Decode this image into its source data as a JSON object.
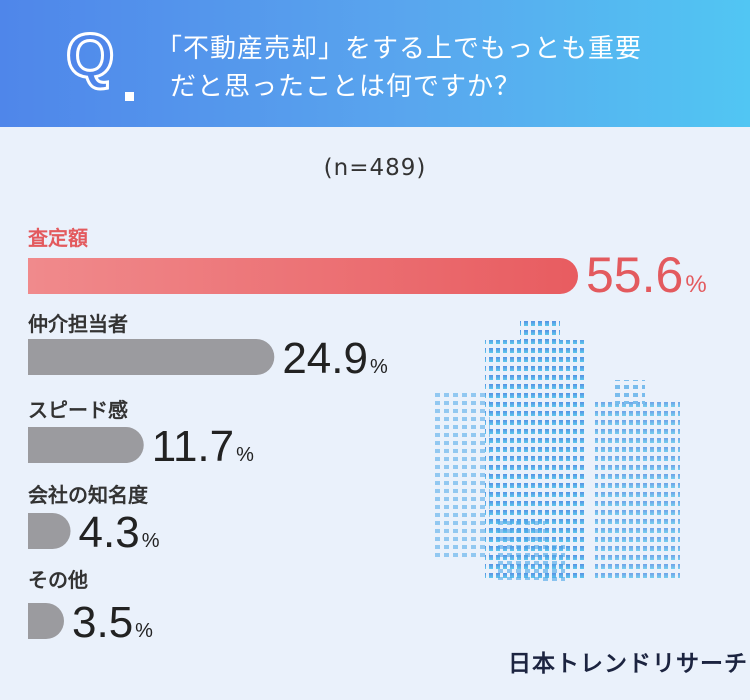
{
  "header": {
    "q_mark": "Q",
    "question_line1": "「不動産売却」をする上でもっとも重要",
    "question_line2": "だと思ったことは何ですか？"
  },
  "sample_size": "(n=489)",
  "brand": "日本トレンドリサーチ",
  "colors": {
    "top_bar_start": "#f08a8c",
    "top_bar_end": "#e85c60",
    "top_text": "#e35a5e",
    "bar_gray": "#9b9b9f",
    "label_dark": "#333333",
    "value_dark": "#222222"
  },
  "chart_data": {
    "type": "bar",
    "orientation": "horizontal",
    "unit": "%",
    "categories": [
      "査定額",
      "仲介担当者",
      "スピード感",
      "会社の知名度",
      "その他"
    ],
    "values": [
      55.6,
      24.9,
      11.7,
      4.3,
      3.5
    ],
    "value_labels": [
      "55.6",
      "24.9",
      "11.7",
      "4.3",
      "3.5"
    ],
    "highlight_index": 0,
    "grid": false
  }
}
